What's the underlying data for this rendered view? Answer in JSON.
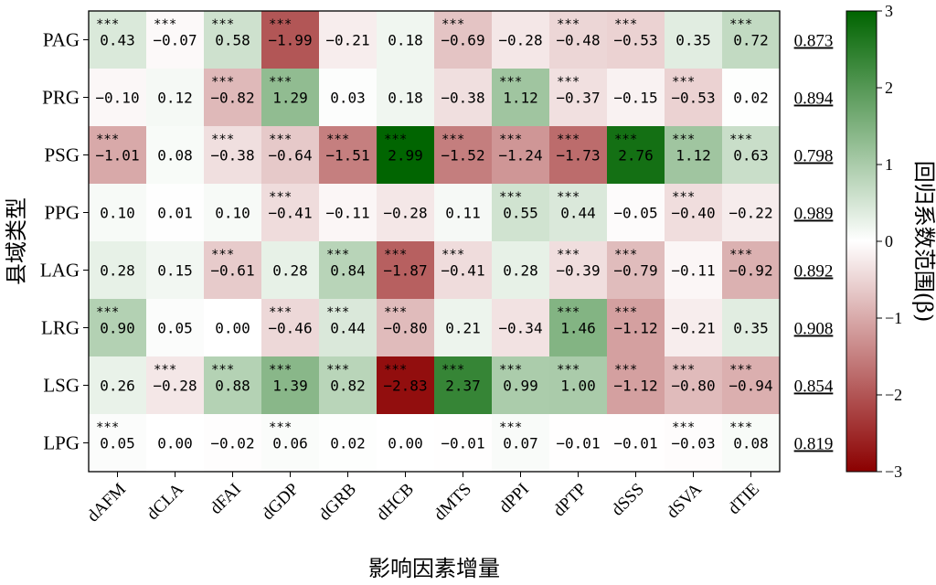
{
  "chart_data": {
    "type": "heatmap",
    "title": "",
    "xlabel": "影响因素增量",
    "ylabel": "县域类型",
    "colorbar_label": "回归系数范围(β)",
    "colorbar_ticks": [
      "3",
      "2",
      "1",
      "0",
      "−1",
      "−2",
      "−3"
    ],
    "vmin": -3,
    "vmax": 3,
    "colors": {
      "positive": "#006400",
      "zero": "#ffffff",
      "negative": "#8b0000"
    },
    "x_categories": [
      "dAFM",
      "dCLA",
      "dFAI",
      "dGDP",
      "dGRB",
      "dHCB",
      "dMTS",
      "dPPI",
      "dPTP",
      "dSSS",
      "dSVA",
      "dTIE"
    ],
    "y_categories": [
      "PAG",
      "PRG",
      "PSG",
      "PPG",
      "LAG",
      "LRG",
      "LSG",
      "LPG"
    ],
    "values": [
      [
        0.43,
        -0.07,
        0.58,
        -1.99,
        -0.21,
        0.18,
        -0.69,
        -0.28,
        -0.48,
        -0.53,
        0.35,
        0.72
      ],
      [
        -0.1,
        0.12,
        -0.82,
        1.29,
        0.03,
        0.18,
        -0.38,
        1.12,
        -0.37,
        -0.15,
        -0.53,
        0.02
      ],
      [
        -1.01,
        0.08,
        -0.38,
        -0.64,
        -1.51,
        2.99,
        -1.52,
        -1.24,
        -1.73,
        2.76,
        1.12,
        0.63
      ],
      [
        0.1,
        0.01,
        0.1,
        -0.41,
        -0.11,
        -0.28,
        0.11,
        0.55,
        0.44,
        -0.05,
        -0.4,
        -0.22
      ],
      [
        0.28,
        0.15,
        -0.61,
        0.28,
        0.84,
        -1.87,
        -0.41,
        0.28,
        -0.39,
        -0.79,
        -0.11,
        -0.92
      ],
      [
        0.9,
        0.05,
        0.0,
        -0.46,
        0.44,
        -0.8,
        0.21,
        -0.34,
        1.46,
        -1.12,
        -0.21,
        0.35
      ],
      [
        0.26,
        -0.28,
        0.88,
        1.39,
        0.82,
        -2.83,
        2.37,
        0.99,
        1.0,
        -1.12,
        -0.8,
        -0.94
      ],
      [
        0.05,
        0.0,
        -0.02,
        0.06,
        0.02,
        0.0,
        -0.01,
        0.07,
        -0.01,
        -0.01,
        -0.03,
        0.08
      ]
    ],
    "labels": [
      [
        "0.43",
        "−0.07",
        "0.58",
        "−1.99",
        "−0.21",
        "0.18",
        "−0.69",
        "−0.28",
        "−0.48",
        "−0.53",
        "0.35",
        "0.72"
      ],
      [
        "−0.10",
        "0.12",
        "−0.82",
        "1.29",
        "0.03",
        "0.18",
        "−0.38",
        "1.12",
        "−0.37",
        "−0.15",
        "−0.53",
        "0.02"
      ],
      [
        "−1.01",
        "0.08",
        "−0.38",
        "−0.64",
        "−1.51",
        "2.99",
        "−1.52",
        "−1.24",
        "−1.73",
        "2.76",
        "1.12",
        "0.63"
      ],
      [
        "0.10",
        "0.01",
        "0.10",
        "−0.41",
        "−0.11",
        "−0.28",
        "0.11",
        "0.55",
        "0.44",
        "−0.05",
        "−0.40",
        "−0.22"
      ],
      [
        "0.28",
        "0.15",
        "−0.61",
        "0.28",
        "0.84",
        "−1.87",
        "−0.41",
        "0.28",
        "−0.39",
        "−0.79",
        "−0.11",
        "−0.92"
      ],
      [
        "0.90",
        "0.05",
        "0.00",
        "−0.46",
        "0.44",
        "−0.80",
        "0.21",
        "−0.34",
        "1.46",
        "−1.12",
        "−0.21",
        "0.35"
      ],
      [
        "0.26",
        "−0.28",
        "0.88",
        "1.39",
        "0.82",
        "−2.83",
        "2.37",
        "0.99",
        "1.00",
        "−1.12",
        "−0.80",
        "−0.94"
      ],
      [
        "0.05",
        "0.00",
        "−0.02",
        "0.06",
        "0.02",
        "0.00",
        "−0.01",
        "0.07",
        "−0.01",
        "−0.01",
        "−0.03",
        "0.08"
      ]
    ],
    "significance_marker": "***",
    "significance": [
      [
        1,
        1,
        1,
        1,
        0,
        0,
        1,
        0,
        1,
        1,
        0,
        1
      ],
      [
        0,
        0,
        1,
        1,
        0,
        0,
        0,
        1,
        1,
        0,
        1,
        0
      ],
      [
        1,
        0,
        1,
        1,
        1,
        1,
        1,
        1,
        1,
        1,
        1,
        1
      ],
      [
        0,
        0,
        0,
        1,
        0,
        0,
        0,
        1,
        1,
        0,
        1,
        0
      ],
      [
        0,
        0,
        1,
        0,
        1,
        1,
        1,
        0,
        1,
        1,
        0,
        1
      ],
      [
        1,
        0,
        0,
        1,
        1,
        1,
        0,
        0,
        1,
        1,
        0,
        0
      ],
      [
        0,
        1,
        1,
        1,
        1,
        1,
        1,
        1,
        1,
        1,
        1,
        1
      ],
      [
        1,
        0,
        0,
        1,
        0,
        0,
        0,
        1,
        0,
        0,
        1,
        1
      ]
    ],
    "r2_values": [
      "0.873",
      "0.894",
      "0.798",
      "0.989",
      "0.892",
      "0.908",
      "0.854",
      "0.819"
    ]
  }
}
